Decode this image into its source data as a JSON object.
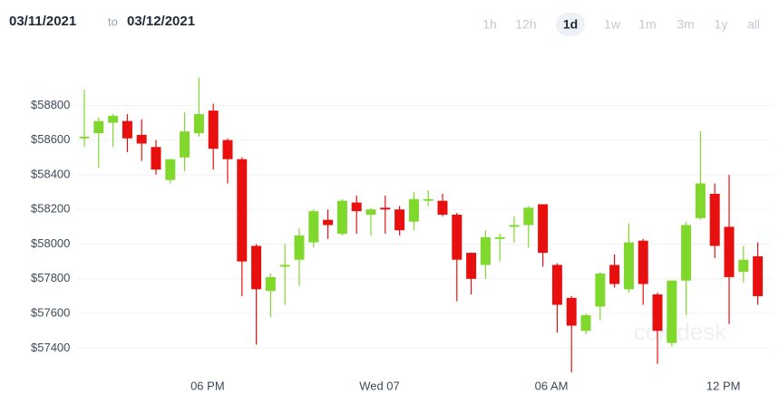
{
  "header": {
    "from": "03/11/2021",
    "sep": "to",
    "to": "03/12/2021",
    "ranges": [
      "1h",
      "12h",
      "1d",
      "1w",
      "1m",
      "3m",
      "1y",
      "all"
    ],
    "active_range": "1d"
  },
  "chart_data": {
    "type": "candlestick",
    "watermark": "coindesk",
    "categories": [
      null,
      null,
      null,
      null,
      null,
      null,
      null,
      null,
      null,
      "06 PM",
      null,
      null,
      null,
      null,
      null,
      null,
      null,
      null,
      null,
      null,
      null,
      "Wed 07",
      null,
      null,
      null,
      null,
      null,
      null,
      null,
      null,
      null,
      null,
      null,
      "06 AM",
      null,
      null,
      null,
      null,
      null,
      null,
      null,
      null,
      null,
      null,
      null,
      "12 PM",
      null,
      null
    ],
    "up_color": "#7fd82b",
    "down_color": "#e8100f",
    "open": [
      58610,
      58640,
      58700,
      58710,
      58630,
      58560,
      58370,
      58500,
      58640,
      58770,
      58600,
      58490,
      57990,
      57730,
      57870,
      57910,
      58010,
      58140,
      58060,
      58240,
      58170,
      58210,
      58200,
      58130,
      58250,
      58250,
      58170,
      57950,
      57880,
      58030,
      58100,
      58110,
      58230,
      57880,
      57690,
      57500,
      57640,
      57880,
      57740,
      58020,
      57710,
      57430,
      57790,
      58150,
      58290,
      58100,
      57840,
      57930
    ],
    "high": [
      58890,
      58730,
      58750,
      58750,
      58720,
      58600,
      58490,
      58760,
      58960,
      58810,
      58610,
      58500,
      58000,
      57830,
      58000,
      58090,
      58200,
      58200,
      58260,
      58280,
      58210,
      58280,
      58220,
      58300,
      58310,
      58290,
      58180,
      57950,
      58080,
      58060,
      58160,
      58220,
      58230,
      57890,
      57700,
      57600,
      57840,
      57940,
      58120,
      58030,
      57720,
      57790,
      58130,
      58650,
      58350,
      58400,
      57990,
      58010
    ],
    "low": [
      58560,
      58440,
      58560,
      58530,
      58480,
      58400,
      58350,
      58420,
      58620,
      58430,
      58350,
      57700,
      57420,
      57580,
      57650,
      57760,
      57980,
      58030,
      58050,
      58060,
      58050,
      58060,
      58050,
      58080,
      58220,
      58160,
      57670,
      57710,
      57800,
      57900,
      58010,
      57980,
      57870,
      57490,
      57260,
      57480,
      57560,
      57750,
      57720,
      57650,
      57310,
      57410,
      57590,
      58140,
      57920,
      57540,
      57780,
      57650
    ],
    "close": [
      58620,
      58710,
      58740,
      58610,
      58580,
      58430,
      58490,
      58650,
      58750,
      58550,
      58490,
      57900,
      57740,
      57810,
      57880,
      58050,
      58190,
      58110,
      58250,
      58190,
      58200,
      58200,
      58080,
      58260,
      58260,
      58170,
      57910,
      57800,
      58040,
      58040,
      58110,
      58210,
      57950,
      57650,
      57530,
      57590,
      57830,
      57770,
      58010,
      57770,
      57500,
      57790,
      58110,
      58350,
      57990,
      57810,
      57910,
      57700
    ],
    "ylim": [
      57240,
      58990
    ],
    "yticks": [
      {
        "value": 57400,
        "label": "$57400"
      },
      {
        "value": 57600,
        "label": "$57600"
      },
      {
        "value": 57800,
        "label": "$57800"
      },
      {
        "value": 58000,
        "label": "$58000"
      },
      {
        "value": 58200,
        "label": "$58200"
      },
      {
        "value": 58400,
        "label": "$58400"
      },
      {
        "value": 58600,
        "label": "$58600"
      },
      {
        "value": 58800,
        "label": "$58800"
      }
    ],
    "grid": true
  }
}
